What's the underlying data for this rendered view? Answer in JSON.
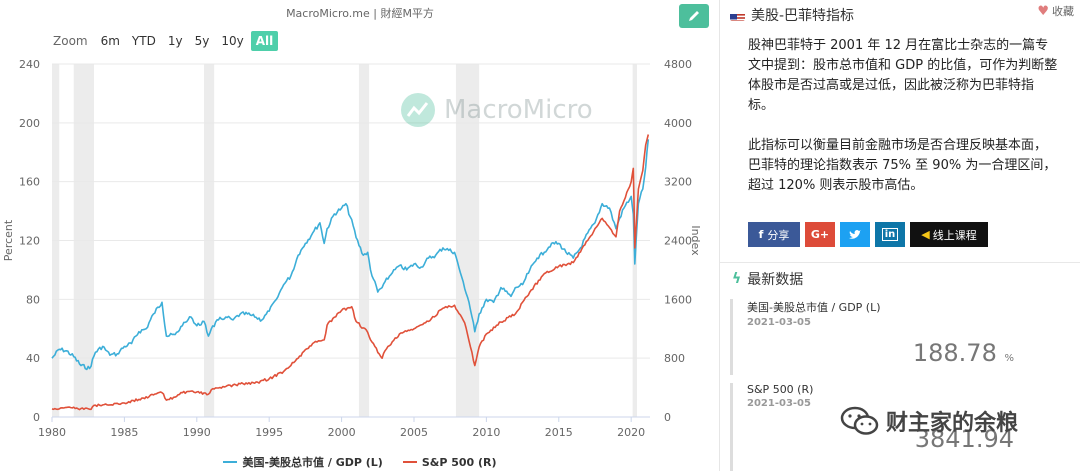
{
  "source": "MacroMicro.me | 財經M平方",
  "watermark": "MacroMicro",
  "zoom": {
    "label": "Zoom",
    "options": [
      "6m",
      "YTD",
      "1y",
      "5y",
      "10y",
      "All"
    ],
    "active": "All"
  },
  "info": {
    "title": "美股-巴菲特指标",
    "favorite_label": "收藏",
    "description": [
      "股神巴菲特于 2001 年 12 月在富比士杂志的一篇专文中提到：股市总市值和 GDP 的比值，可作为判断整体股市是否过高或是过低，因此被泛称为巴菲特指标。",
      "此指标可以衡量目前金融市场是否合理反映基本面，巴菲特的理论指数表示 75% 至 90% 为一合理区间，超过 120% 则表示股市高估。"
    ],
    "share": {
      "facebook": "分享",
      "course": "线上课程"
    },
    "latest_title": "最新数据",
    "latest": [
      {
        "name": "美国-美股总市值 / GDP (L)",
        "date": "2021-03-05",
        "value": "188.78",
        "unit": "%"
      },
      {
        "name": "S&P 500 (R)",
        "date": "2021-03-05",
        "value": "3841.94",
        "unit": ""
      }
    ]
  },
  "wechat_label": "财主家的余粮",
  "colors": {
    "series1": "#3caed8",
    "series2": "#e0513a",
    "accent": "#4dbf9c",
    "recession": "#ececec"
  },
  "chart_data": {
    "type": "line",
    "title": "",
    "xlabel": "",
    "ylabel_left": "Percent",
    "ylabel_right": "Index",
    "xlim": [
      1980,
      2021.3
    ],
    "ylim_left": [
      0,
      240
    ],
    "ylim_right": [
      0,
      4800
    ],
    "x_ticks": [
      1980,
      1985,
      1990,
      1995,
      2000,
      2005,
      2010,
      2015,
      2020
    ],
    "y_ticks_left": [
      0,
      40,
      80,
      120,
      160,
      200,
      240
    ],
    "y_ticks_right": [
      0,
      800,
      1600,
      2400,
      3200,
      4000,
      4800
    ],
    "grid": true,
    "legend_position": "bottom",
    "recessions": [
      [
        1980.0,
        1980.5
      ],
      [
        1981.5,
        1982.9
      ],
      [
        1990.5,
        1991.2
      ],
      [
        2001.2,
        2001.9
      ],
      [
        2007.9,
        2009.5
      ],
      [
        2020.1,
        2020.4
      ]
    ],
    "series": [
      {
        "name": "美国-美股总市值 / GDP (L)",
        "axis": "left",
        "x": [
          1980.0,
          1980.5,
          1981.0,
          1981.5,
          1982.0,
          1982.6,
          1983.0,
          1983.5,
          1984.0,
          1984.5,
          1985.0,
          1985.5,
          1986.0,
          1986.5,
          1987.0,
          1987.6,
          1987.9,
          1988.5,
          1989.0,
          1989.6,
          1990.0,
          1990.5,
          1990.8,
          1991.0,
          1991.5,
          1992.0,
          1992.5,
          1993.0,
          1993.5,
          1994.0,
          1994.5,
          1995.0,
          1995.5,
          1996.0,
          1996.5,
          1997.0,
          1997.5,
          1998.0,
          1998.5,
          1998.8,
          1999.0,
          1999.5,
          2000.0,
          2000.3,
          2000.8,
          2001.0,
          2001.5,
          2001.8,
          2002.0,
          2002.5,
          2002.8,
          2003.0,
          2003.5,
          2004.0,
          2004.5,
          2005.0,
          2005.5,
          2006.0,
          2006.5,
          2007.0,
          2007.8,
          2008.3,
          2008.8,
          2009.2,
          2009.5,
          2010.0,
          2010.5,
          2011.0,
          2011.7,
          2012.0,
          2012.5,
          2013.0,
          2013.5,
          2014.0,
          2014.5,
          2015.0,
          2015.5,
          2016.0,
          2016.5,
          2017.0,
          2017.5,
          2018.0,
          2018.5,
          2018.95,
          2019.2,
          2019.5,
          2020.0,
          2020.15,
          2020.25,
          2020.5,
          2020.8,
          2021.0,
          2021.18
        ],
        "values": [
          40,
          46,
          45,
          41,
          35,
          33,
          44,
          48,
          42,
          43,
          48,
          50,
          58,
          60,
          70,
          78,
          55,
          56,
          62,
          68,
          62,
          65,
          55,
          60,
          66,
          68,
          66,
          70,
          70,
          68,
          66,
          72,
          80,
          90,
          96,
          110,
          118,
          125,
          132,
          118,
          128,
          138,
          142,
          145,
          130,
          122,
          110,
          112,
          100,
          85,
          88,
          92,
          98,
          103,
          100,
          104,
          102,
          108,
          110,
          115,
          112,
          95,
          78,
          58,
          70,
          80,
          78,
          88,
          82,
          88,
          90,
          100,
          108,
          112,
          118,
          118,
          112,
          108,
          115,
          125,
          132,
          145,
          142,
          128,
          135,
          142,
          150,
          138,
          104,
          145,
          155,
          170,
          188.78
        ]
      },
      {
        "name": "S&P 500 (R)",
        "axis": "right",
        "x": [
          1980.0,
          1981.0,
          1982.0,
          1982.6,
          1983.0,
          1984.0,
          1985.0,
          1986.0,
          1987.0,
          1987.6,
          1987.9,
          1988.5,
          1989.0,
          1990.0,
          1990.8,
          1991.0,
          1992.0,
          1993.0,
          1994.0,
          1995.0,
          1996.0,
          1997.0,
          1998.0,
          1998.8,
          1999.0,
          2000.0,
          2000.7,
          2001.0,
          2001.8,
          2002.0,
          2002.8,
          2003.0,
          2004.0,
          2005.0,
          2006.0,
          2007.0,
          2007.8,
          2008.5,
          2009.2,
          2009.5,
          2010.0,
          2011.0,
          2012.0,
          2013.0,
          2014.0,
          2015.0,
          2016.0,
          2017.0,
          2018.0,
          2018.95,
          2019.2,
          2020.0,
          2020.15,
          2020.25,
          2020.5,
          2020.8,
          2021.0,
          2021.18
        ],
        "values": [
          110,
          130,
          115,
          105,
          160,
          165,
          190,
          240,
          300,
          330,
          230,
          270,
          330,
          340,
          310,
          370,
          415,
          450,
          460,
          520,
          620,
          800,
          1000,
          1050,
          1250,
          1450,
          1500,
          1300,
          1150,
          1050,
          800,
          900,
          1130,
          1200,
          1300,
          1480,
          1520,
          1280,
          700,
          950,
          1130,
          1290,
          1400,
          1700,
          1950,
          2050,
          2100,
          2400,
          2700,
          2450,
          2800,
          3200,
          3380,
          2300,
          3100,
          3350,
          3700,
          3841.94
        ]
      }
    ]
  }
}
